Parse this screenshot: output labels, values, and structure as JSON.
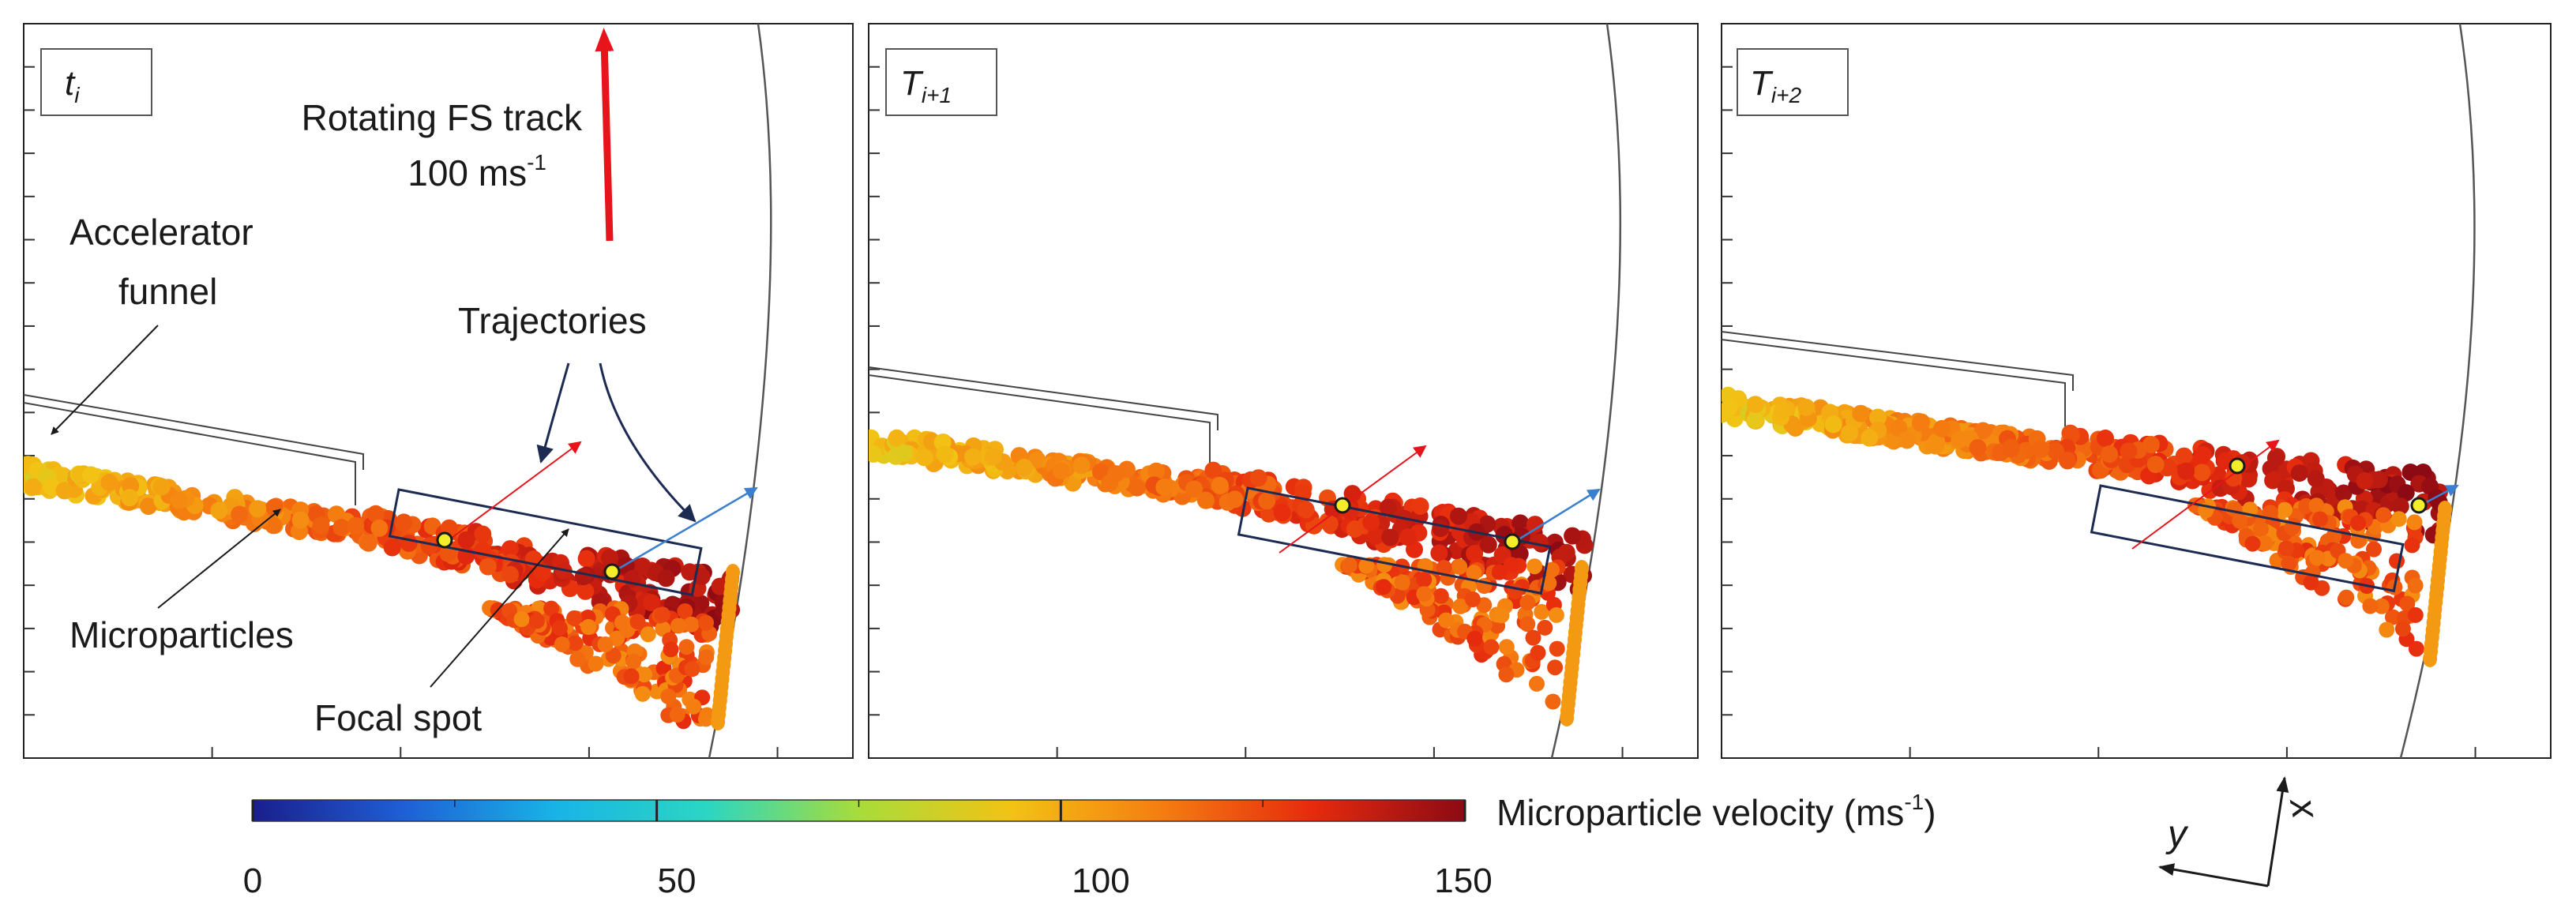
{
  "panels": [
    {
      "label_main": "t",
      "label_sub": "i"
    },
    {
      "label_main": "T",
      "label_sub": "i+1"
    },
    {
      "label_main": "T",
      "label_sub": "i+2"
    }
  ],
  "annotations": {
    "track_line1": "Rotating FS track",
    "track_speed_value": "100 ms",
    "track_speed_exp": "-1",
    "funnel_line1": "Accelerator",
    "funnel_line2": "funnel",
    "trajectories": "Trajectories",
    "microparticles": "Microparticles",
    "focal_spot": "Focal spot"
  },
  "colorbar": {
    "title_value": "Microparticle velocity (ms",
    "title_exp": "-1",
    "title_close": ")",
    "ticks": [
      "0",
      "50",
      "100",
      "150"
    ],
    "range": [
      0,
      150
    ],
    "colors": [
      "#1a1e8c",
      "#1f5fd6",
      "#18b4e6",
      "#2bd6c2",
      "#a8dc3a",
      "#f2c314",
      "#f57d10",
      "#e62a0e",
      "#8c0a14"
    ]
  },
  "axes_labels": {
    "x": "x",
    "y": "y"
  },
  "colors": {
    "track_arrow": "#e8141c",
    "traj_red": "#e8141c",
    "traj_blue": "#3a7fd0",
    "marker": "#f4ee2a",
    "box": "#1d2a52"
  }
}
